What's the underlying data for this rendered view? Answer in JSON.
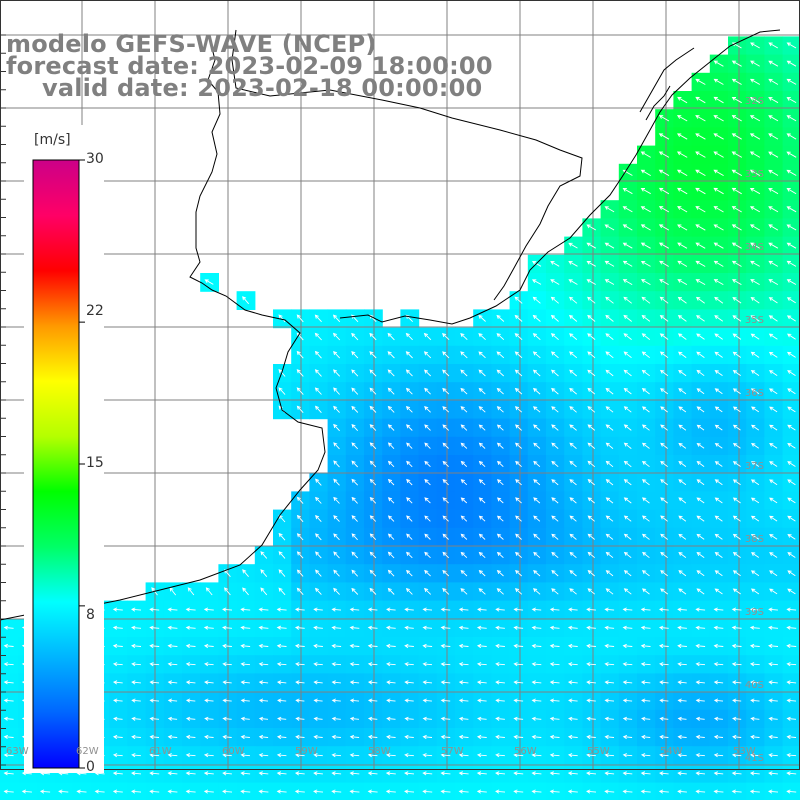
{
  "title": {
    "line1": "modelo GEFS-WAVE (NCEP)",
    "line2": "forecast date: 2023-02-09 18:00:00",
    "line3": "valid date: 2023-02-18 00:00:00"
  },
  "colorbar": {
    "units": "[m/s]",
    "ticks": [
      "30",
      "22",
      "15",
      "8",
      "0"
    ],
    "min": 0,
    "max": 30,
    "colors": [
      "#0000ff",
      "#0066ff",
      "#00b4ff",
      "#00ffff",
      "#00ff66",
      "#00ff00",
      "#b4ff00",
      "#ffff00",
      "#ff9900",
      "#ff0000",
      "#ff0066",
      "#cc0088"
    ]
  },
  "map": {
    "land_color": "#ffffff",
    "grid_color": "#808080",
    "coast_color": "#000000",
    "arrow_color": "#ffffff",
    "lat_labels": [
      "32S",
      "33S",
      "34S",
      "35S",
      "36S",
      "37S",
      "38S",
      "39S",
      "40S",
      "41S",
      "42S"
    ],
    "lon_labels": [
      "63W",
      "62W",
      "61W",
      "60W",
      "59W",
      "58W",
      "57W",
      "56W",
      "55W",
      "54W",
      "53W"
    ],
    "wind_speed_field": "8 m/s (cyan) along the coast, up to ~12 m/s (green) near the NE corner, 3–5 m/s (blue) in the central offshore region, wind blowing toward the north-west"
  }
}
